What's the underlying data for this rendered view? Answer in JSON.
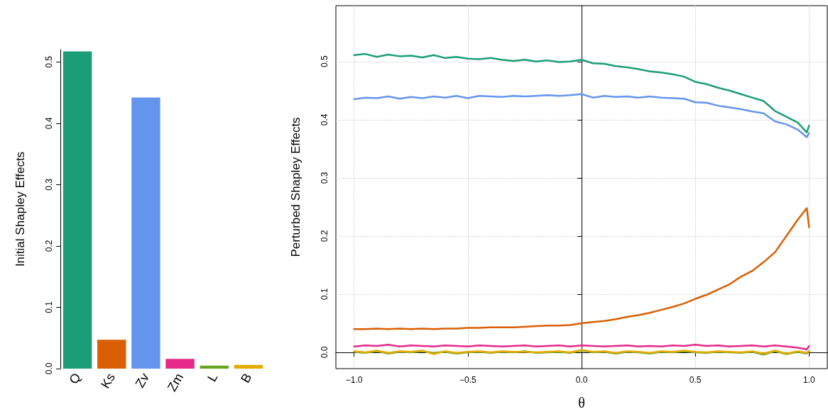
{
  "chart_data": [
    {
      "type": "bar",
      "ylabel": "Initial Shapley Effects",
      "categories": [
        "Q",
        "Ks",
        "Zv",
        "Zm",
        "L",
        "B"
      ],
      "values": [
        0.517,
        0.047,
        0.442,
        0.016,
        0.005,
        0.006
      ],
      "colors": [
        "#1b9e77",
        "#d95f02",
        "#6495ed",
        "#e7298a",
        "#66a61e",
        "#e6ab02"
      ],
      "ylim": [
        0,
        0.52
      ],
      "yticks": [
        {
          "value": 0,
          "label": "0.0"
        },
        0.1,
        0.2,
        0.3,
        0.4,
        0.5
      ],
      "grid": false
    },
    {
      "type": "line",
      "xlabel": "θ",
      "ylabel": "Perturbed Shapley Effects",
      "x": [
        -1,
        -0.95,
        -0.9,
        -0.85,
        -0.8,
        -0.75,
        -0.7,
        -0.65,
        -0.6,
        -0.55,
        -0.5,
        -0.45,
        -0.4,
        -0.35,
        -0.3,
        -0.25,
        -0.2,
        -0.15,
        -0.1,
        -0.05,
        0,
        0.05,
        0.1,
        0.15,
        0.2,
        0.25,
        0.3,
        0.35,
        0.4,
        0.45,
        0.5,
        0.55,
        0.6,
        0.65,
        0.7,
        0.75,
        0.8,
        0.85,
        0.9,
        0.95,
        0.99,
        1
      ],
      "xlim": [
        -1.08,
        1.08
      ],
      "xticks": [
        {
          "value": -1,
          "label": "−1.0"
        },
        {
          "value": -0.5,
          "label": "−0.5"
        },
        {
          "value": 0,
          "label": "0.0"
        },
        0.5,
        {
          "value": 1,
          "label": "1.0"
        }
      ],
      "ylim": [
        -0.028,
        0.596
      ],
      "yticks": [
        {
          "value": 0,
          "label": "0.0"
        },
        0.1,
        0.2,
        0.3,
        0.4,
        0.5
      ],
      "grid": true,
      "line_style": "solid",
      "marker": "none",
      "series": [
        {
          "color": "#1b9e77",
          "values": [
            0.511,
            0.513,
            0.508,
            0.512,
            0.509,
            0.51,
            0.507,
            0.511,
            0.506,
            0.508,
            0.505,
            0.504,
            0.506,
            0.503,
            0.501,
            0.503,
            0.5,
            0.502,
            0.499,
            0.5,
            0.503,
            0.497,
            0.496,
            0.492,
            0.49,
            0.487,
            0.483,
            0.481,
            0.478,
            0.474,
            0.465,
            0.461,
            0.455,
            0.45,
            0.444,
            0.438,
            0.432,
            0.415,
            0.405,
            0.395,
            0.378,
            0.39
          ]
        },
        {
          "color": "#6495ed",
          "values": [
            0.435,
            0.438,
            0.437,
            0.44,
            0.436,
            0.439,
            0.437,
            0.44,
            0.438,
            0.441,
            0.437,
            0.441,
            0.44,
            0.439,
            0.441,
            0.44,
            0.441,
            0.442,
            0.441,
            0.442,
            0.444,
            0.438,
            0.441,
            0.439,
            0.44,
            0.438,
            0.44,
            0.438,
            0.437,
            0.436,
            0.43,
            0.429,
            0.424,
            0.421,
            0.418,
            0.414,
            0.411,
            0.397,
            0.392,
            0.383,
            0.37,
            0.377
          ]
        },
        {
          "color": "#d95f02",
          "values": [
            0.04,
            0.04,
            0.041,
            0.04,
            0.041,
            0.04,
            0.041,
            0.04,
            0.041,
            0.041,
            0.042,
            0.042,
            0.043,
            0.043,
            0.043,
            0.044,
            0.045,
            0.046,
            0.046,
            0.047,
            0.05,
            0.052,
            0.054,
            0.057,
            0.061,
            0.064,
            0.068,
            0.073,
            0.078,
            0.084,
            0.092,
            0.099,
            0.108,
            0.117,
            0.13,
            0.14,
            0.155,
            0.172,
            0.2,
            0.228,
            0.248,
            0.215
          ]
        },
        {
          "color": "#e7298a",
          "values": [
            0.01,
            0.012,
            0.011,
            0.013,
            0.01,
            0.012,
            0.011,
            0.01,
            0.012,
            0.011,
            0.01,
            0.012,
            0.011,
            0.01,
            0.011,
            0.012,
            0.01,
            0.011,
            0.012,
            0.01,
            0.012,
            0.011,
            0.01,
            0.011,
            0.012,
            0.01,
            0.011,
            0.01,
            0.012,
            0.011,
            0.013,
            0.011,
            0.012,
            0.01,
            0.011,
            0.012,
            0.01,
            0.012,
            0.01,
            0.008,
            0.005,
            0.011
          ]
        },
        {
          "color": "#66a61e",
          "values": [
            0.001,
            -0.001,
            0.002,
            -0.002,
            0.001,
            0.0,
            0.002,
            -0.001,
            0.001,
            -0.002,
            0.0,
            0.001,
            -0.001,
            0.001,
            0.0,
            0.002,
            -0.001,
            0.0,
            0.001,
            -0.001,
            0.003,
            0.0,
            0.001,
            -0.002,
            0.001,
            0.0,
            -0.002,
            0.001,
            0.0,
            0.002,
            0.0,
            -0.001,
            0.001,
            0.0,
            -0.001,
            0.001,
            -0.004,
            0.002,
            -0.003,
            0.001,
            -0.002,
            0.002
          ]
        },
        {
          "color": "#e6ab02",
          "values": [
            0.002,
            0.0,
            0.003,
            -0.001,
            0.002,
            0.001,
            0.003,
            -0.003,
            0.002,
            -0.001,
            0.001,
            0.002,
            0.0,
            0.002,
            0.001,
            0.001,
            0.0,
            0.001,
            0.002,
            0.0,
            0.004,
            0.001,
            0.002,
            -0.001,
            0.002,
            0.001,
            -0.001,
            0.002,
            0.001,
            0.003,
            0.001,
            0.0,
            0.002,
            0.001,
            0.0,
            0.002,
            -0.002,
            0.003,
            -0.002,
            0.002,
            -0.001,
            0.003
          ]
        }
      ]
    }
  ]
}
